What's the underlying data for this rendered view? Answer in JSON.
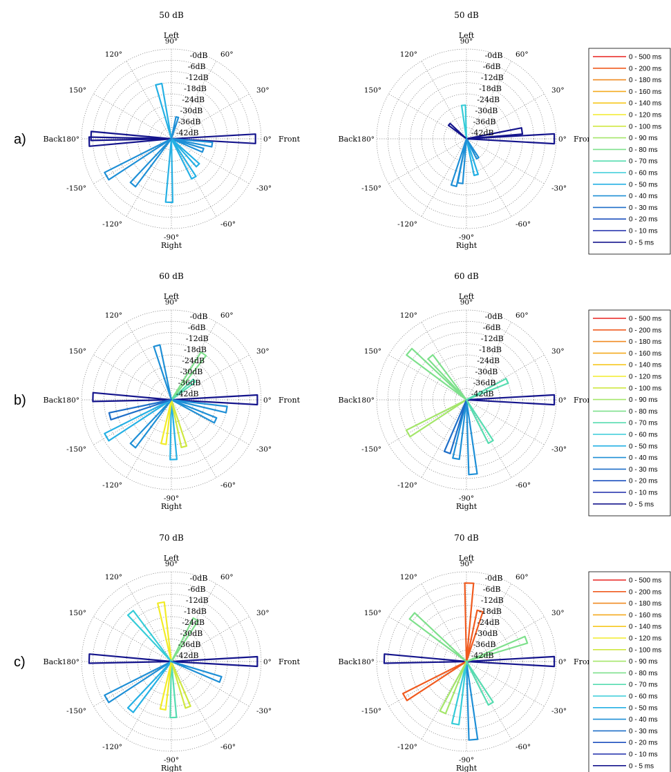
{
  "row_labels": [
    "a)",
    "b)",
    "c)"
  ],
  "direction_labels": {
    "top": "Left",
    "bottom": "Right",
    "left": "Back",
    "right": "Front"
  },
  "legend": [
    {
      "label": "0 - 500 ms",
      "color": "#e8201e"
    },
    {
      "label": "0 - 200 ms",
      "color": "#f05a1e"
    },
    {
      "label": "0 - 180 ms",
      "color": "#f08a20"
    },
    {
      "label": "0 - 160 ms",
      "color": "#f4aa1e"
    },
    {
      "label": "0 - 140 ms",
      "color": "#f6c81e"
    },
    {
      "label": "0 - 120 ms",
      "color": "#f2ec28"
    },
    {
      "label": "0 - 100 ms",
      "color": "#cfe840"
    },
    {
      "label": "0 - 90 ms",
      "color": "#a4e66a"
    },
    {
      "label": "0 - 80 ms",
      "color": "#7ee08c"
    },
    {
      "label": "0 - 70 ms",
      "color": "#56dcb0"
    },
    {
      "label": "0 - 60 ms",
      "color": "#36ccd8"
    },
    {
      "label": "0 - 50 ms",
      "color": "#25b0e4"
    },
    {
      "label": "0 - 40 ms",
      "color": "#1e8fd6"
    },
    {
      "label": "0 - 30 ms",
      "color": "#1e6ec8"
    },
    {
      "label": "0 - 20 ms",
      "color": "#1c4fbe"
    },
    {
      "label": "0 - 10 ms",
      "color": "#1a28a8"
    },
    {
      "label": "0 - 5 ms",
      "color": "#14148c"
    }
  ],
  "chart_data": [
    {
      "type": "polar",
      "row": "a)",
      "title": "50 dB",
      "radial_ticks": [
        "-0dB",
        "-6dB",
        "-12dB",
        "-18dB",
        "-24dB",
        "-30dB",
        "-36dB",
        "-42dB"
      ],
      "angular_ticks": [
        "0°",
        "30°",
        "60°",
        "90°",
        "120°",
        "150°",
        "180°",
        "-150°",
        "-120°",
        "-90°",
        "-60°",
        "-30°"
      ],
      "rays_deg_db": [
        [
          0,
          -3,
          "0 - 5 ms"
        ],
        [
          178,
          -5,
          "0 - 5 ms"
        ],
        [
          182,
          -4,
          "0 - 5 ms"
        ],
        [
          -8,
          -26,
          "0 - 40 ms"
        ],
        [
          -20,
          -30,
          "0 - 40 ms"
        ],
        [
          -45,
          -28,
          "0 - 50 ms"
        ],
        [
          -60,
          -24,
          "0 - 50 ms"
        ],
        [
          -92,
          -14,
          "0 - 50 ms"
        ],
        [
          -130,
          -16,
          "0 - 40 ms"
        ],
        [
          -150,
          -8,
          "0 - 40 ms"
        ],
        [
          103,
          -18,
          "0 - 50 ms"
        ],
        [
          75,
          -36,
          "0 - 40 ms"
        ]
      ]
    },
    {
      "type": "polar",
      "row": "a)",
      "title": "50 dB",
      "radial_ticks": [
        "-0dB",
        "-6dB",
        "-12dB",
        "-18dB",
        "-24dB",
        "-30dB",
        "-36dB",
        "-42dB"
      ],
      "angular_ticks": [
        "0°",
        "30°",
        "60°",
        "90°",
        "120°",
        "150°",
        "180°",
        "-150°",
        "-120°",
        "-90°",
        "-60°",
        "-30°"
      ],
      "rays_deg_db": [
        [
          0,
          -1,
          "0 - 5 ms"
        ],
        [
          8,
          -18,
          "0 - 5 ms"
        ],
        [
          95,
          -30,
          "0 - 60 ms"
        ],
        [
          140,
          -36,
          "0 - 5 ms"
        ],
        [
          -75,
          -28,
          "0 - 50 ms"
        ],
        [
          -98,
          -24,
          "0 - 40 ms"
        ],
        [
          -105,
          -22,
          "0 - 40 ms"
        ],
        [
          -60,
          -36,
          "0 - 40 ms"
        ]
      ]
    },
    {
      "type": "polar",
      "row": "b)",
      "title": "60 dB",
      "radial_ticks": [
        "-0dB",
        "-6dB",
        "-12dB",
        "-18dB",
        "-24dB",
        "-30dB",
        "-36dB",
        "-42dB"
      ],
      "angular_ticks": [
        "0°",
        "30°",
        "60°",
        "90°",
        "120°",
        "150°",
        "180°",
        "-150°",
        "-120°",
        "-90°",
        "-60°",
        "-30°"
      ],
      "rays_deg_db": [
        [
          0,
          -2,
          "0 - 5 ms"
        ],
        [
          178,
          -6,
          "0 - 5 ms"
        ],
        [
          -10,
          -18,
          "0 - 40 ms"
        ],
        [
          -25,
          -22,
          "0 - 40 ms"
        ],
        [
          55,
          -18,
          "0 - 80 ms"
        ],
        [
          40,
          -32,
          "0 - 70 ms"
        ],
        [
          105,
          -18,
          "0 - 40 ms"
        ],
        [
          -88,
          -16,
          "0 - 50 ms"
        ],
        [
          -75,
          -22,
          "0 - 100 ms"
        ],
        [
          -100,
          -24,
          "0 - 120 ms"
        ],
        [
          -130,
          -16,
          "0 - 40 ms"
        ],
        [
          -150,
          -8,
          "0 - 50 ms"
        ],
        [
          -165,
          -14,
          "0 - 30 ms"
        ]
      ]
    },
    {
      "type": "polar",
      "row": "b)",
      "title": "60 dB",
      "radial_ticks": [
        "-0dB",
        "-6dB",
        "-12dB",
        "-18dB",
        "-24dB",
        "-30dB",
        "-36dB",
        "-42dB"
      ],
      "angular_ticks": [
        "0°",
        "30°",
        "60°",
        "90°",
        "120°",
        "150°",
        "180°",
        "-150°",
        "-120°",
        "-90°",
        "-60°",
        "-30°"
      ],
      "rays_deg_db": [
        [
          0,
          -1,
          "0 - 5 ms"
        ],
        [
          25,
          -24,
          "0 - 70 ms"
        ],
        [
          140,
          -8,
          "0 - 80 ms"
        ],
        [
          130,
          -18,
          "0 - 80 ms"
        ],
        [
          -150,
          -12,
          "0 - 90 ms"
        ],
        [
          -85,
          -8,
          "0 - 40 ms"
        ],
        [
          -100,
          -16,
          "0 - 40 ms"
        ],
        [
          -110,
          -18,
          "0 - 30 ms"
        ],
        [
          -60,
          -22,
          "0 - 70 ms"
        ]
      ]
    },
    {
      "type": "polar",
      "row": "c)",
      "title": "70 dB",
      "radial_ticks": [
        "-0dB",
        "-6dB",
        "-12dB",
        "-18dB",
        "-24dB",
        "-30dB",
        "-36dB",
        "-42dB"
      ],
      "angular_ticks": [
        "0°",
        "30°",
        "60°",
        "90°",
        "120°",
        "150°",
        "180°",
        "-150°",
        "-120°",
        "-90°",
        "-60°",
        "-30°"
      ],
      "rays_deg_db": [
        [
          0,
          -2,
          "0 - 5 ms"
        ],
        [
          178,
          -4,
          "0 - 5 ms"
        ],
        [
          100,
          -16,
          "0 - 120 ms"
        ],
        [
          130,
          -14,
          "0 - 60 ms"
        ],
        [
          60,
          -22,
          "0 - 80 ms"
        ],
        [
          -150,
          -8,
          "0 - 40 ms"
        ],
        [
          -130,
          -14,
          "0 - 50 ms"
        ],
        [
          -88,
          -18,
          "0 - 70 ms"
        ],
        [
          -100,
          -22,
          "0 - 120 ms"
        ],
        [
          -70,
          -22,
          "0 - 100 ms"
        ],
        [
          -20,
          -20,
          "0 - 40 ms"
        ]
      ]
    },
    {
      "type": "polar",
      "row": "c)",
      "title": "70 dB",
      "radial_ticks": [
        "-0dB",
        "-6dB",
        "-12dB",
        "-18dB",
        "-24dB",
        "-30dB",
        "-36dB",
        "-42dB"
      ],
      "angular_ticks": [
        "0°",
        "30°",
        "60°",
        "90°",
        "120°",
        "150°",
        "180°",
        "-150°",
        "-120°",
        "-90°",
        "-60°",
        "-30°"
      ],
      "rays_deg_db": [
        [
          0,
          -1,
          "0 - 5 ms"
        ],
        [
          178,
          -4,
          "0 - 5 ms"
        ],
        [
          88,
          -6,
          "0 - 200 ms"
        ],
        [
          75,
          -20,
          "0 - 200 ms"
        ],
        [
          20,
          -14,
          "0 - 80 ms"
        ],
        [
          140,
          -10,
          "0 - 80 ms"
        ],
        [
          -150,
          -10,
          "0 - 200 ms"
        ],
        [
          -85,
          -6,
          "0 - 40 ms"
        ],
        [
          -100,
          -14,
          "0 - 60 ms"
        ],
        [
          -115,
          -18,
          "0 - 90 ms"
        ],
        [
          -60,
          -22,
          "0 - 70 ms"
        ]
      ]
    }
  ]
}
